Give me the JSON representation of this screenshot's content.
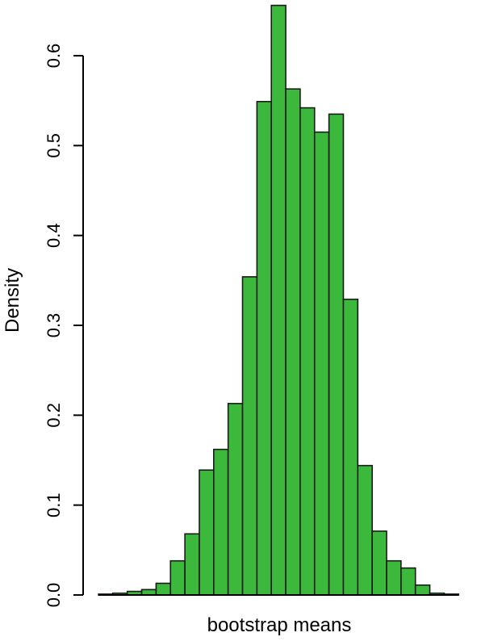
{
  "chart_data": {
    "type": "bar",
    "title": "",
    "xlabel": "bootstrap means",
    "ylabel": "Density",
    "ylim": [
      0,
      0.65
    ],
    "y_ticks": [
      "0.0",
      "0.1",
      "0.2",
      "0.3",
      "0.4",
      "0.5",
      "0.6"
    ],
    "y_tick_values": [
      0.0,
      0.1,
      0.2,
      0.3,
      0.4,
      0.5,
      0.6
    ],
    "x_ticks_visible": false,
    "grid": false,
    "bar_color": "#3cb83c",
    "bar_edge_color": "#1a1a1a",
    "values": [
      0.001,
      0.002,
      0.004,
      0.006,
      0.013,
      0.038,
      0.068,
      0.139,
      0.162,
      0.213,
      0.354,
      0.549,
      0.656,
      0.563,
      0.542,
      0.515,
      0.535,
      0.329,
      0.144,
      0.071,
      0.038,
      0.03,
      0.011,
      0.002,
      0.001
    ]
  }
}
